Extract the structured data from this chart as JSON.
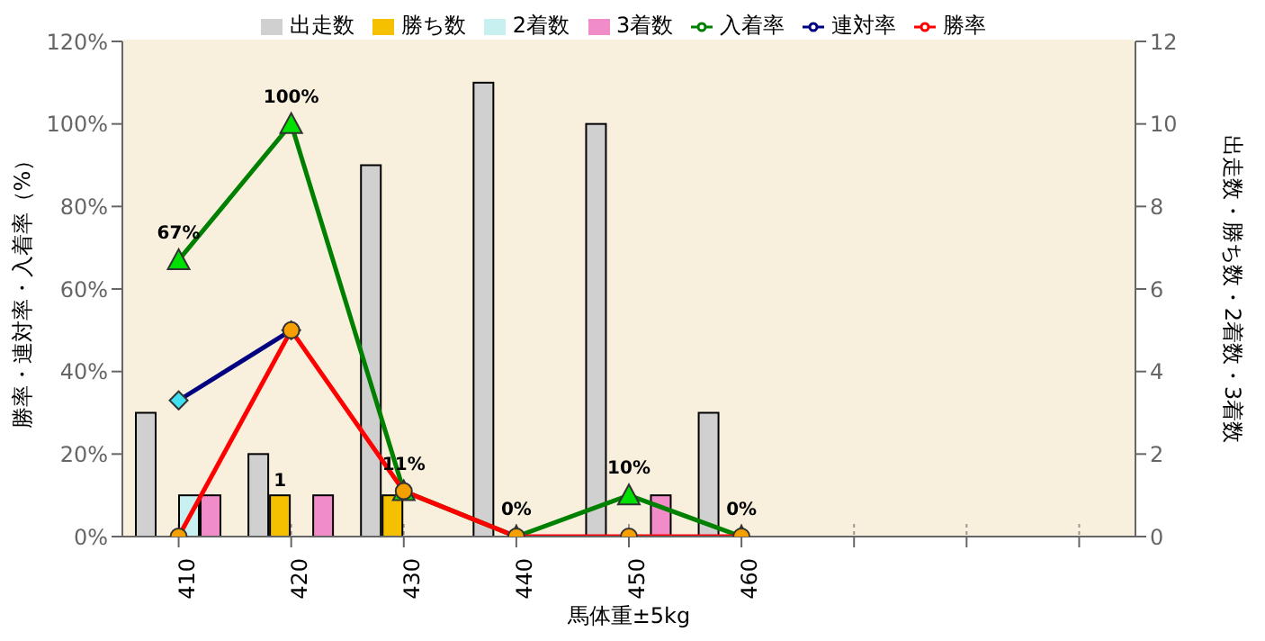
{
  "chart_data": {
    "type": "bar",
    "xlabel": "馬体重±5kg",
    "ylabel": "勝率・連対率・入着率（%）",
    "y2label": "出走数・勝ち数・2着数・3着数",
    "categories": [
      "410",
      "420",
      "430",
      "440",
      "450",
      "460",
      null,
      null,
      null
    ],
    "series": [
      {
        "name": "出走数",
        "type": "bar",
        "axis": "y2",
        "color": "#d0d0d0",
        "values": [
          3,
          2,
          9,
          11,
          10,
          3,
          null,
          null,
          null
        ]
      },
      {
        "name": "勝ち数",
        "type": "bar",
        "axis": "y2",
        "color": "#f5c000",
        "values": [
          0,
          1,
          1,
          0,
          0,
          0,
          null,
          null,
          null
        ],
        "value_labels": [
          null,
          "1",
          null,
          null,
          null,
          null,
          null,
          null,
          null
        ]
      },
      {
        "name": "2着数",
        "type": "bar",
        "axis": "y2",
        "color": "#c8f0f0",
        "values": [
          1,
          0,
          0,
          0,
          0,
          0,
          null,
          null,
          null
        ]
      },
      {
        "name": "3着数",
        "type": "bar",
        "axis": "y2",
        "color": "#f08cc8",
        "values": [
          1,
          1,
          0,
          0,
          1,
          0,
          null,
          null,
          null
        ]
      },
      {
        "name": "入着率",
        "type": "line",
        "axis": "y",
        "color": "#008000",
        "marker": "triangle",
        "values": [
          67,
          100,
          11,
          0,
          10,
          0,
          null,
          null,
          null
        ],
        "value_labels": [
          "67%",
          "100%",
          "11%",
          "0%",
          "10%",
          "0%",
          null,
          null,
          null
        ]
      },
      {
        "name": "連対率",
        "type": "line",
        "axis": "y",
        "color": "#000080",
        "marker": "diamond",
        "values": [
          33,
          50,
          null,
          null,
          null,
          null,
          null,
          null,
          null
        ]
      },
      {
        "name": "勝率",
        "type": "line",
        "axis": "y",
        "color": "#ff0000",
        "marker": "circle",
        "values": [
          0,
          50,
          11,
          0,
          0,
          0,
          null,
          null,
          null
        ]
      }
    ],
    "ylim": [
      0,
      120
    ],
    "yticks": [
      {
        "value": 0,
        "label": "0%"
      },
      {
        "value": 20,
        "label": "20%"
      },
      {
        "value": 40,
        "label": "40%"
      },
      {
        "value": 60,
        "label": "60%"
      },
      {
        "value": 80,
        "label": "80%"
      },
      {
        "value": 100,
        "label": "100%"
      },
      {
        "value": 120,
        "label": "120%"
      }
    ],
    "y2lim": [
      0,
      12
    ],
    "y2ticks": [
      0,
      2,
      4,
      6,
      8,
      10,
      12
    ],
    "grid": true,
    "legend": "top"
  }
}
